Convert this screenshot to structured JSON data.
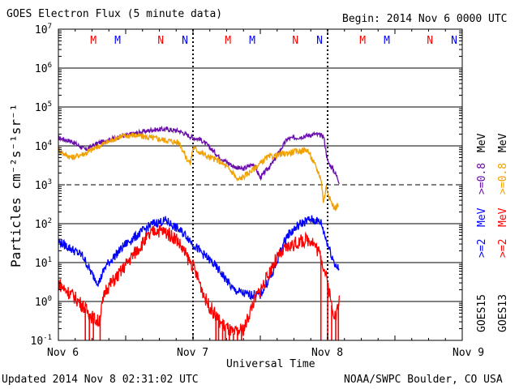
{
  "header": {
    "title": "GOES Electron Flux (5 minute data)",
    "begin": "Begin: 2014 Nov 6 0000 UTC"
  },
  "footer": {
    "updated": "Updated 2014 Nov  8 02:31:02 UTC",
    "source": "NOAA/SWPC Boulder, CO USA"
  },
  "legend": {
    "goes15": "GOES15",
    "goes13": "GOES13",
    "ge2": ">=2",
    "mev": "MeV",
    "ge08": ">=0.8"
  },
  "colors": {
    "goes15_08": "#6a0dad",
    "goes13_08": "#f0a000",
    "goes15_2": "#0000ff",
    "goes13_2": "#ff0000",
    "marker_m": "#ff0000",
    "marker_n_red": "#ff0000",
    "marker_blue": "#0000ff"
  },
  "chart_data": {
    "type": "line",
    "title": "GOES Electron Flux (5 minute data)",
    "xlabel": "Universal Time",
    "ylabel": "Particles cm⁻²s⁻¹sr⁻¹",
    "y_scale": "log",
    "ylim": [
      0.1,
      10000000
    ],
    "xlim_days": [
      0,
      3
    ],
    "x_ticks": [
      {
        "day": 0,
        "label": "Nov 6"
      },
      {
        "day": 1,
        "label": "Nov 7"
      },
      {
        "day": 2,
        "label": "Nov 8"
      },
      {
        "day": 3,
        "label": "Nov 9"
      }
    ],
    "y_ticks": [
      {
        "value": 0.1,
        "base": "10",
        "exp": "-1"
      },
      {
        "value": 1,
        "base": "10",
        "exp": "0"
      },
      {
        "value": 10,
        "base": "10",
        "exp": "1"
      },
      {
        "value": 100,
        "base": "10",
        "exp": "2"
      },
      {
        "value": 1000,
        "base": "10",
        "exp": "3"
      },
      {
        "value": 10000,
        "base": "10",
        "exp": "4"
      },
      {
        "value": 100000,
        "base": "10",
        "exp": "5"
      },
      {
        "value": 1000000,
        "base": "10",
        "exp": "6"
      },
      {
        "value": 10000000,
        "base": "10",
        "exp": "7"
      }
    ],
    "threshold": 1000,
    "markers": [
      {
        "day": 0.26,
        "label": "M",
        "color": "marker_m"
      },
      {
        "day": 0.44,
        "label": "M",
        "color": "marker_blue"
      },
      {
        "day": 0.76,
        "label": "N",
        "color": "marker_n_red"
      },
      {
        "day": 0.94,
        "label": "N",
        "color": "marker_blue"
      },
      {
        "day": 1.26,
        "label": "M",
        "color": "marker_m"
      },
      {
        "day": 1.44,
        "label": "M",
        "color": "marker_blue"
      },
      {
        "day": 1.76,
        "label": "N",
        "color": "marker_n_red"
      },
      {
        "day": 1.94,
        "label": "N",
        "color": "marker_blue"
      },
      {
        "day": 2.26,
        "label": "M",
        "color": "marker_m"
      },
      {
        "day": 2.44,
        "label": "M",
        "color": "marker_blue"
      },
      {
        "day": 2.76,
        "label": "N",
        "color": "marker_n_red"
      },
      {
        "day": 2.94,
        "label": "N",
        "color": "marker_blue"
      }
    ],
    "series": [
      {
        "name": "GOES15 >=0.8 MeV",
        "color": "goes15_08",
        "noise": 0.06,
        "points": [
          [
            0,
            16000
          ],
          [
            0.1,
            13000
          ],
          [
            0.2,
            8000
          ],
          [
            0.3,
            12000
          ],
          [
            0.45,
            17000
          ],
          [
            0.6,
            22000
          ],
          [
            0.7,
            26000
          ],
          [
            0.8,
            27000
          ],
          [
            0.9,
            24000
          ],
          [
            1.0,
            16000
          ],
          [
            1.05,
            15000
          ],
          [
            1.1,
            11000
          ],
          [
            1.2,
            5000
          ],
          [
            1.3,
            3000
          ],
          [
            1.37,
            2500
          ],
          [
            1.45,
            3500
          ],
          [
            1.5,
            1500
          ],
          [
            1.55,
            2500
          ],
          [
            1.6,
            4000
          ],
          [
            1.65,
            8000
          ],
          [
            1.7,
            15000
          ],
          [
            1.8,
            17000
          ],
          [
            1.9,
            20000
          ],
          [
            1.97,
            18000
          ],
          [
            2.0,
            4000
          ],
          [
            2.04,
            2500
          ],
          [
            2.07,
            1600
          ],
          [
            2.09,
            1100
          ]
        ]
      },
      {
        "name": "GOES13 >=0.8 MeV",
        "color": "goes13_08",
        "noise": 0.08,
        "points": [
          [
            0,
            8000
          ],
          [
            0.05,
            6000
          ],
          [
            0.1,
            5000
          ],
          [
            0.2,
            6500
          ],
          [
            0.35,
            12000
          ],
          [
            0.45,
            17000
          ],
          [
            0.55,
            19000
          ],
          [
            0.6,
            18000
          ],
          [
            0.7,
            16000
          ],
          [
            0.8,
            14000
          ],
          [
            0.9,
            12000
          ],
          [
            0.95,
            5000
          ],
          [
            0.98,
            3500
          ],
          [
            1.0,
            9000
          ],
          [
            1.1,
            5500
          ],
          [
            1.2,
            4000
          ],
          [
            1.3,
            2000
          ],
          [
            1.33,
            1300
          ],
          [
            1.36,
            1500
          ],
          [
            1.45,
            2500
          ],
          [
            1.55,
            5000
          ],
          [
            1.6,
            5500
          ],
          [
            1.7,
            6500
          ],
          [
            1.8,
            7500
          ],
          [
            1.85,
            8000
          ],
          [
            1.9,
            3500
          ],
          [
            1.95,
            1500
          ],
          [
            1.97,
            350
          ],
          [
            1.99,
            900
          ],
          [
            2.02,
            400
          ],
          [
            2.05,
            250
          ],
          [
            2.08,
            300
          ]
        ]
      },
      {
        "name": "GOES15 >=2 MeV",
        "color": "goes15_2",
        "noise": 0.12,
        "points": [
          [
            0,
            35
          ],
          [
            0.1,
            22
          ],
          [
            0.18,
            15
          ],
          [
            0.25,
            5
          ],
          [
            0.3,
            3
          ],
          [
            0.35,
            8
          ],
          [
            0.42,
            15
          ],
          [
            0.5,
            30
          ],
          [
            0.6,
            55
          ],
          [
            0.7,
            100
          ],
          [
            0.8,
            120
          ],
          [
            0.87,
            80
          ],
          [
            0.95,
            50
          ],
          [
            1.0,
            30
          ],
          [
            1.05,
            20
          ],
          [
            1.12,
            12
          ],
          [
            1.2,
            6
          ],
          [
            1.3,
            2
          ],
          [
            1.4,
            1.5
          ],
          [
            1.5,
            1.5
          ],
          [
            1.6,
            6
          ],
          [
            1.65,
            20
          ],
          [
            1.7,
            50
          ],
          [
            1.8,
            100
          ],
          [
            1.87,
            130
          ],
          [
            1.95,
            110
          ],
          [
            2.0,
            30
          ],
          [
            2.05,
            10
          ],
          [
            2.09,
            6
          ]
        ]
      },
      {
        "name": "GOES13 >=2 MeV",
        "color": "goes13_2",
        "noise": 0.18,
        "points": [
          [
            0,
            3
          ],
          [
            0.05,
            2
          ],
          [
            0.1,
            1.5
          ],
          [
            0.18,
            0.8
          ],
          [
            0.25,
            0.4
          ],
          [
            0.3,
            0.3
          ],
          [
            0.35,
            2
          ],
          [
            0.45,
            5
          ],
          [
            0.55,
            15
          ],
          [
            0.65,
            40
          ],
          [
            0.72,
            70
          ],
          [
            0.8,
            60
          ],
          [
            0.88,
            40
          ],
          [
            0.95,
            15
          ],
          [
            1.0,
            8
          ],
          [
            1.05,
            3
          ],
          [
            1.1,
            1
          ],
          [
            1.2,
            0.3
          ],
          [
            1.3,
            0.15
          ],
          [
            1.38,
            0.2
          ],
          [
            1.45,
            1
          ],
          [
            1.55,
            4
          ],
          [
            1.6,
            10
          ],
          [
            1.7,
            25
          ],
          [
            1.8,
            35
          ],
          [
            1.88,
            40
          ],
          [
            1.95,
            15
          ],
          [
            2.0,
            3
          ],
          [
            2.03,
            0.8
          ],
          [
            2.06,
            0.4
          ],
          [
            2.09,
            1.2
          ]
        ]
      }
    ],
    "dropouts": [
      {
        "series": "GOES13 >=2 MeV",
        "days": [
          0.2,
          0.23,
          0.26,
          0.31,
          1.17,
          1.19,
          1.22,
          1.24,
          1.27,
          1.3,
          1.33,
          1.36,
          1.95,
          2.0,
          2.03,
          2.06,
          2.08
        ]
      }
    ]
  }
}
